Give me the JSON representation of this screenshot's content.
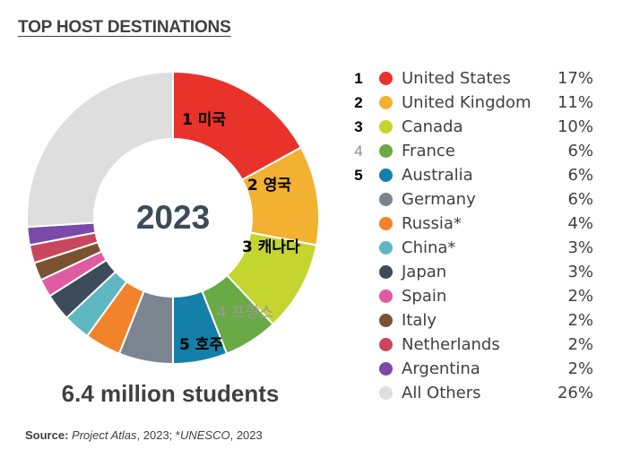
{
  "title": "TOP HOST DESTINATIONS",
  "center_label": "2023",
  "total_label": "6.4 million students",
  "source": {
    "prefix": "Source:",
    "ref1": "Project Atlas",
    "mid": ", 2023; *",
    "ref2": "UNESCO",
    "suffix": ", 2023"
  },
  "chart_data": {
    "type": "pie",
    "title": "TOP HOST DESTINATIONS",
    "unit": "%",
    "legend_position": "right",
    "slices": [
      {
        "rank": "1",
        "name": "United States",
        "value": 17,
        "color": "#e8322a",
        "segment_label": "1 미국"
      },
      {
        "rank": "2",
        "name": "United Kingdom",
        "value": 11,
        "color": "#f2b131",
        "segment_label": "2 영국"
      },
      {
        "rank": "3",
        "name": "Canada",
        "value": 10,
        "color": "#c4d52f",
        "segment_label": "3 캐나다"
      },
      {
        "rank": "4",
        "name": "France",
        "value": 6,
        "color": "#6aaa46",
        "segment_label": "4 프랑스"
      },
      {
        "rank": "5",
        "name": "Australia",
        "value": 6,
        "color": "#147fa9",
        "segment_label": "5 호주"
      },
      {
        "rank": "",
        "name": "Germany",
        "value": 6,
        "color": "#7a8590",
        "segment_label": ""
      },
      {
        "rank": "",
        "name": "Russia*",
        "value": 4,
        "color": "#f2832a",
        "segment_label": ""
      },
      {
        "rank": "",
        "name": "China*",
        "value": 3,
        "color": "#5fb7c2",
        "segment_label": ""
      },
      {
        "rank": "",
        "name": "Japan",
        "value": 3,
        "color": "#3b4b5a",
        "segment_label": ""
      },
      {
        "rank": "",
        "name": "Spain",
        "value": 2,
        "color": "#e05aa4",
        "segment_label": ""
      },
      {
        "rank": "",
        "name": "Italy",
        "value": 2,
        "color": "#7a5230",
        "segment_label": ""
      },
      {
        "rank": "",
        "name": "Netherlands",
        "value": 2,
        "color": "#c9475e",
        "segment_label": ""
      },
      {
        "rank": "",
        "name": "Argentina",
        "value": 2,
        "color": "#7b4aa8",
        "segment_label": ""
      },
      {
        "rank": "",
        "name": "All Others",
        "value": 26,
        "color": "#dededf",
        "segment_label": ""
      }
    ]
  }
}
